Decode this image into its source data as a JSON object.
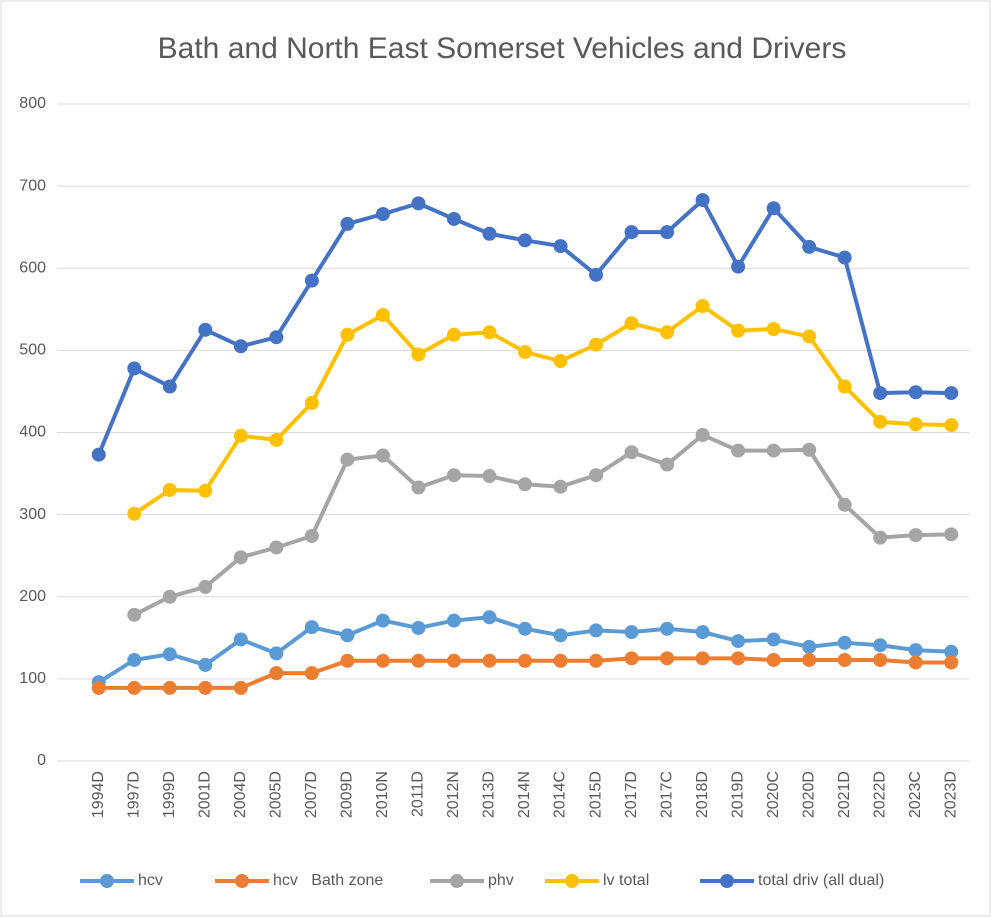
{
  "chart_data": {
    "type": "line",
    "title": "Bath and North East Somerset Vehicles and Drivers",
    "categories": [
      "1994D",
      "1997D",
      "1999D",
      "2001D",
      "2004D",
      "2005D",
      "2007D",
      "2009D",
      "2010N",
      "2011D",
      "2012N",
      "2013D",
      "2014N",
      "2014C",
      "2015D",
      "2017D",
      "2017C",
      "2018D",
      "2019D",
      "2020C",
      "2020D",
      "2021D",
      "2022D",
      "2023C",
      "2023D"
    ],
    "series": [
      {
        "name": "hcv",
        "color": "#5b9bd5",
        "values": [
          96,
          123,
          130,
          117,
          148,
          131,
          163,
          153,
          171,
          162,
          171,
          175,
          161,
          153,
          159,
          157,
          161,
          157,
          146,
          148,
          139,
          144,
          141,
          135,
          133
        ]
      },
      {
        "name": "hcv   Bath zone",
        "color": "#ed7d31",
        "values": [
          89,
          89,
          89,
          89,
          89,
          107,
          107,
          122,
          122,
          122,
          122,
          122,
          122,
          122,
          122,
          125,
          125,
          125,
          125,
          123,
          123,
          123,
          123,
          120,
          120
        ]
      },
      {
        "name": "phv",
        "color": "#a5a5a5",
        "values": [
          null,
          178,
          200,
          212,
          248,
          260,
          274,
          367,
          372,
          333,
          348,
          347,
          337,
          334,
          348,
          376,
          361,
          397,
          378,
          378,
          379,
          312,
          272,
          275,
          276
        ]
      },
      {
        "name": "lv total",
        "color": "#ffc000",
        "values": [
          null,
          301,
          330,
          329,
          396,
          391,
          436,
          519,
          543,
          495,
          519,
          522,
          498,
          487,
          507,
          533,
          522,
          554,
          524,
          526,
          517,
          456,
          413,
          410,
          409
        ]
      },
      {
        "name": "total driv (all dual)",
        "color": "#4472c4",
        "values": [
          373,
          478,
          456,
          525,
          505,
          516,
          585,
          654,
          666,
          679,
          660,
          642,
          634,
          627,
          592,
          644,
          644,
          683,
          602,
          673,
          626,
          613,
          448,
          449,
          448
        ]
      }
    ],
    "ylim": [
      0,
      800
    ],
    "yticks": [
      0,
      100,
      200,
      300,
      400,
      500,
      600,
      700,
      800
    ],
    "grid": true,
    "legend": "bottom"
  }
}
